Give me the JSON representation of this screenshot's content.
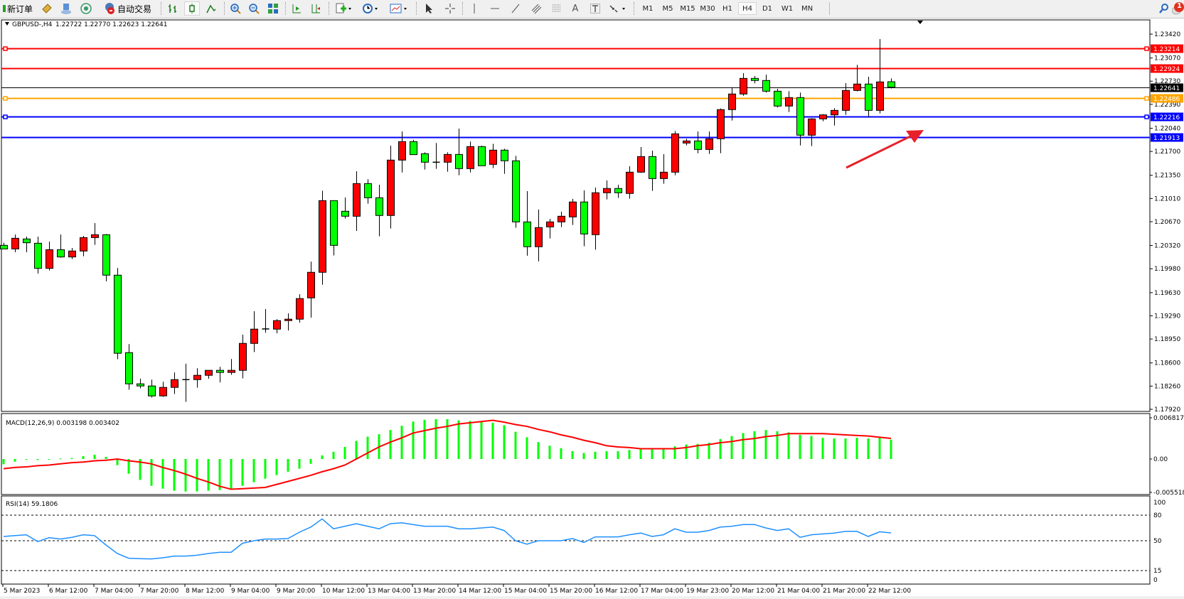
{
  "toolbar": {
    "new_order_label": "新订单",
    "auto_trade_label": "自动交易",
    "timeframes": [
      "M1",
      "M5",
      "M15",
      "M30",
      "H1",
      "H4",
      "D1",
      "W1",
      "MN"
    ],
    "active_timeframe": "H4",
    "notification_count": "1",
    "icons": [
      "new-order-icon",
      "market-watch-icon",
      "navigator-icon",
      "signals-icon",
      "auto-trading-icon",
      "bar-chart-icon",
      "candlestick-icon",
      "line-chart-icon",
      "zoom-in-icon",
      "zoom-out-icon",
      "tile-windows-icon",
      "auto-scroll-icon",
      "chart-shift-icon",
      "indicators-icon",
      "periods-icon",
      "templates-icon",
      "cursor-icon",
      "crosshair-icon",
      "vertical-line-icon",
      "horizontal-line-icon",
      "trendline-icon",
      "fibonacci-channel-icon",
      "fibonacci-icon",
      "text-icon",
      "text-label-icon",
      "arrows-icon",
      "search-icon",
      "notification-icon"
    ]
  },
  "chart": {
    "title": "GBPUSD-,H4",
    "ohlc_text": "1.22722 1.22770 1.22623 1.22641"
  },
  "chart_data": {
    "type": "candlestick",
    "symbol": "GBPUSD-",
    "timeframe": "H4",
    "bull_color": "#ff0000",
    "bear_color": "#00ff00",
    "price_axis": {
      "range": [
        1.1792,
        1.2342
      ],
      "ticks": [
        "1.23420",
        "1.23070",
        "1.22730",
        "1.22390",
        "1.22040",
        "1.21700",
        "1.21350",
        "1.21010",
        "1.20670",
        "1.20320",
        "1.19980",
        "1.19630",
        "1.19290",
        "1.18950",
        "1.18600",
        "1.18260",
        "1.17920"
      ]
    },
    "time_labels": [
      "5 Mar 2023",
      "6 Mar 12:00",
      "7 Mar 04:00",
      "7 Mar 20:00",
      "8 Mar 12:00",
      "9 Mar 04:00",
      "9 Mar 20:00",
      "10 Mar 12:00",
      "13 Mar 04:00",
      "13 Mar 20:00",
      "14 Mar 12:00",
      "15 Mar 04:00",
      "15 Mar 20:00",
      "16 Mar 12:00",
      "17 Mar 04:00",
      "19 Mar 23:00",
      "20 Mar 12:00",
      "21 Mar 04:00",
      "21 Mar 20:00",
      "22 Mar 12:00"
    ],
    "candles_ohlc": [
      [
        1.20323,
        1.20361,
        1.20271,
        1.20271
      ],
      [
        1.20271,
        1.20483,
        1.20222,
        1.20427
      ],
      [
        1.20417,
        1.20451,
        1.20222,
        1.20361
      ],
      [
        1.20354,
        1.20451,
        1.1991,
        1.19986
      ],
      [
        1.19986,
        1.20378,
        1.19955,
        1.2026
      ],
      [
        1.2026,
        1.20483,
        1.20143,
        1.20153
      ],
      [
        1.20153,
        1.20285,
        1.20122,
        1.2024
      ],
      [
        1.2024,
        1.20462,
        1.20163,
        1.20437
      ],
      [
        1.20437,
        1.20649,
        1.2033,
        1.20479
      ],
      [
        1.20479,
        1.20489,
        1.19796,
        1.19886
      ],
      [
        1.19886,
        1.1999,
        1.18654,
        1.18741
      ],
      [
        1.18751,
        1.18876,
        1.18206,
        1.18293
      ],
      [
        1.18293,
        1.18369,
        1.18227,
        1.18262
      ],
      [
        1.18262,
        1.18355,
        1.18092,
        1.18116
      ],
      [
        1.18116,
        1.18324,
        1.18102,
        1.18241
      ],
      [
        1.18241,
        1.1846,
        1.18144,
        1.18355
      ],
      [
        1.18355,
        1.18588,
        1.18029,
        1.18355
      ],
      [
        1.18355,
        1.18522,
        1.18237,
        1.18418
      ],
      [
        1.18418,
        1.18491,
        1.18366,
        1.18491
      ],
      [
        1.18491,
        1.18543,
        1.18314,
        1.1846
      ],
      [
        1.1846,
        1.18657,
        1.18425,
        1.18491
      ],
      [
        1.18491,
        1.19015,
        1.18373,
        1.18886
      ],
      [
        1.18886,
        1.19358,
        1.18758,
        1.19095
      ],
      [
        1.19098,
        1.1939,
        1.19043,
        1.19098
      ],
      [
        1.19095,
        1.19241,
        1.19033,
        1.1922
      ],
      [
        1.1922,
        1.19328,
        1.19075,
        1.19241
      ],
      [
        1.19241,
        1.19606,
        1.19189,
        1.19543
      ],
      [
        1.19553,
        1.20084,
        1.19262,
        1.19928
      ],
      [
        1.19928,
        1.21125,
        1.19746,
        1.20979
      ],
      [
        1.20979,
        1.20979,
        1.20175,
        1.20323
      ],
      [
        1.20823,
        1.21025,
        1.20716,
        1.2075
      ],
      [
        1.2075,
        1.2141,
        1.20535,
        1.21229
      ],
      [
        1.21229,
        1.21292,
        1.20934,
        1.21021
      ],
      [
        1.21021,
        1.21212,
        1.20456,
        1.20761
      ],
      [
        1.20761,
        1.21785,
        1.2057,
        1.21573
      ],
      [
        1.21573,
        1.21993,
        1.21392,
        1.21844
      ],
      [
        1.21844,
        1.21871,
        1.21653,
        1.21653
      ],
      [
        1.21667,
        1.21687,
        1.21434,
        1.21542
      ],
      [
        1.21542,
        1.21823,
        1.21445,
        1.21542
      ],
      [
        1.21542,
        1.21687,
        1.21403,
        1.21656
      ],
      [
        1.21656,
        1.22034,
        1.21351,
        1.21448
      ],
      [
        1.21448,
        1.21844,
        1.21392,
        1.21771
      ],
      [
        1.21771,
        1.21785,
        1.2149,
        1.2149
      ],
      [
        1.2151,
        1.21812,
        1.21455,
        1.21719
      ],
      [
        1.21719,
        1.21739,
        1.21372,
        1.21563
      ],
      [
        1.21563,
        1.21635,
        1.20581,
        1.20667
      ],
      [
        1.20667,
        1.21118,
        1.20171,
        1.20303
      ],
      [
        1.20303,
        1.20848,
        1.20088,
        1.20584
      ],
      [
        1.20594,
        1.20712,
        1.20424,
        1.20667
      ],
      [
        1.20667,
        1.20816,
        1.20591,
        1.2075
      ],
      [
        1.2074,
        1.21004,
        1.20622,
        1.20959
      ],
      [
        1.20959,
        1.21129,
        1.2031,
        1.2049
      ],
      [
        1.2048,
        1.2117,
        1.20258,
        1.21094
      ],
      [
        1.21094,
        1.21275,
        1.20997,
        1.21157
      ],
      [
        1.21157,
        1.21212,
        1.21018,
        1.21094
      ],
      [
        1.21084,
        1.21483,
        1.21007,
        1.21396
      ],
      [
        1.21396,
        1.21764,
        1.21386,
        1.21625
      ],
      [
        1.21625,
        1.21712,
        1.21122,
        1.21302
      ],
      [
        1.21302,
        1.2166,
        1.21226,
        1.21396
      ],
      [
        1.21396,
        1.22,
        1.21351,
        1.21958
      ],
      [
        1.21823,
        1.21885,
        1.21788,
        1.21854
      ],
      [
        1.21854,
        1.21993,
        1.21673,
        1.21729
      ],
      [
        1.21729,
        1.21993,
        1.21663,
        1.21885
      ],
      [
        1.21886,
        1.2233,
        1.21674,
        1.22313
      ],
      [
        1.22313,
        1.22642,
        1.22153,
        1.22542
      ],
      [
        1.22542,
        1.22847,
        1.22517,
        1.22771
      ],
      [
        1.22771,
        1.22806,
        1.22698,
        1.2274
      ],
      [
        1.2274,
        1.22826,
        1.22563,
        1.22583
      ],
      [
        1.22583,
        1.22618,
        1.22344,
        1.22365
      ],
      [
        1.22365,
        1.22583,
        1.22278,
        1.2249
      ],
      [
        1.2249,
        1.22563,
        1.21789,
        1.21938
      ],
      [
        1.21938,
        1.22188,
        1.21778,
        1.22177
      ],
      [
        1.22177,
        1.22247,
        1.22143,
        1.22236
      ],
      [
        1.22236,
        1.22334,
        1.2208,
        1.22302
      ],
      [
        1.22302,
        1.22701,
        1.22236,
        1.22594
      ],
      [
        1.22594,
        1.22969,
        1.2258,
        1.22688
      ],
      [
        1.22688,
        1.22795,
        1.22205,
        1.22302
      ],
      [
        1.22302,
        1.23347,
        1.22257,
        1.22719
      ],
      [
        1.22722,
        1.2277,
        1.22623,
        1.22641
      ]
    ],
    "horizontal_lines": [
      {
        "price": 1.23214,
        "label": "1.23214",
        "color": "#ff0000",
        "markers": true
      },
      {
        "price": 1.22924,
        "label": "1.22924",
        "color": "#ff0000",
        "markers": false
      },
      {
        "price": 1.22641,
        "label": "1.22641",
        "color": "#000000",
        "markers": false
      },
      {
        "price": 1.22486,
        "label": "1.22486",
        "color": "#ffa500",
        "markers": true
      },
      {
        "price": 1.22216,
        "label": "1.22216",
        "color": "#0000ff",
        "markers": true
      },
      {
        "price": 1.21913,
        "label": "1.21913",
        "color": "#0000ff",
        "markers": false
      }
    ],
    "annotation_arrow_color": "#e8202a",
    "macd": {
      "title": "MACD(12,26,9) 0.003198 0.003402",
      "range": [
        -0.005518,
        0.006817
      ],
      "axis_labels": [
        "0.006817",
        "0.00",
        "-0.005518"
      ],
      "histogram_color": "#00ff00",
      "signal_color": "#ff0000",
      "main": [
        -0.00086,
        -0.00043,
        -8e-05,
        -0.00016,
        -4e-05,
        8e-05,
        0.00016,
        0.00047,
        0.00071,
        0.00035,
        -0.00102,
        -0.00243,
        -0.00345,
        -0.00443,
        -0.0049,
        -0.00525,
        -0.00537,
        -0.00537,
        -0.00525,
        -0.00513,
        -0.0049,
        -0.00443,
        -0.00384,
        -0.00325,
        -0.00266,
        -0.0021,
        -0.0016,
        -0.0008,
        0.0006,
        0.0012,
        0.002,
        0.003,
        0.0037,
        0.0041,
        0.0048,
        0.0055,
        0.0062,
        0.0065,
        0.0066,
        0.0066,
        0.0064,
        0.0063,
        0.0062,
        0.006,
        0.0056,
        0.0045,
        0.0036,
        0.0028,
        0.0022,
        0.0018,
        0.0013,
        0.001,
        0.0012,
        0.0013,
        0.0013,
        0.0015,
        0.0018,
        0.0016,
        0.0017,
        0.0021,
        0.0024,
        0.0025,
        0.0027,
        0.0033,
        0.0038,
        0.0043,
        0.0046,
        0.0048,
        0.0046,
        0.0044,
        0.004,
        0.0038,
        0.0035,
        0.0034,
        0.0034,
        0.0035,
        0.0034,
        0.0035,
        0.003198
      ],
      "signal": [
        -0.0016,
        -0.0014,
        -0.0013,
        -0.0011,
        -0.001,
        -0.0008,
        -0.0006,
        -0.0005,
        -0.0003,
        -0.0002,
        0.0,
        -0.0003,
        -0.0005,
        -0.0008,
        -0.0014,
        -0.0019,
        -0.0025,
        -0.0032,
        -0.0038,
        -0.0045,
        -0.005,
        -0.0049,
        -0.0048,
        -0.0047,
        -0.0042,
        -0.0037,
        -0.0032,
        -0.0027,
        -0.0021,
        -0.0016,
        -0.001,
        0.0,
        0.001,
        0.002,
        0.0028,
        0.0035,
        0.0043,
        0.0047,
        0.0051,
        0.0054,
        0.0058,
        0.006,
        0.0062,
        0.0064,
        0.0061,
        0.0057,
        0.0054,
        0.0049,
        0.0045,
        0.004,
        0.0036,
        0.0031,
        0.0027,
        0.0022,
        0.002,
        0.0019,
        0.0017,
        0.0017,
        0.0017,
        0.0017,
        0.0019,
        0.0022,
        0.0024,
        0.0027,
        0.0029,
        0.0032,
        0.0034,
        0.0037,
        0.0039,
        0.0042,
        0.0042,
        0.0042,
        0.0042,
        0.0041,
        0.004,
        0.0039,
        0.0038,
        0.0036,
        0.003402
      ]
    },
    "rsi": {
      "title": "RSI(14) 59.1806",
      "range": [
        0,
        100
      ],
      "levels": [
        80,
        50,
        15
      ],
      "axis_labels": [
        "100",
        "80",
        "50",
        "15",
        "0"
      ],
      "line_color": "#1e90ff",
      "values": [
        55,
        56,
        57,
        49,
        53.6,
        52,
        54,
        57,
        56,
        45,
        35,
        29.5,
        29,
        28.6,
        30,
        32,
        32,
        33,
        35,
        36.5,
        36.5,
        47,
        50,
        52,
        52,
        52.6,
        60,
        66,
        75.6,
        64,
        67,
        70,
        67,
        64,
        70,
        71,
        69,
        67,
        67,
        67,
        64,
        64,
        65,
        66,
        62,
        50,
        46,
        50,
        50,
        50,
        52.6,
        48,
        54.5,
        54.5,
        54.5,
        57,
        59,
        55,
        57,
        64,
        60,
        60,
        62,
        66,
        67,
        69,
        69,
        65,
        62,
        64,
        54,
        57,
        58,
        59,
        61,
        61,
        55,
        60.5,
        59.1806
      ]
    }
  }
}
